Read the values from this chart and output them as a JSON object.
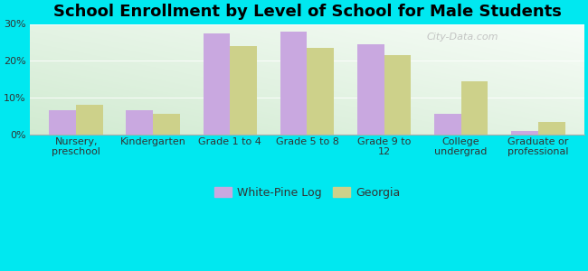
{
  "title": "School Enrollment by Level of School for Male Students",
  "categories": [
    "Nursery,\npreschool",
    "Kindergarten",
    "Grade 1 to 4",
    "Grade 5 to 8",
    "Grade 9 to\n12",
    "College\nundergrad",
    "Graduate or\nprofessional"
  ],
  "white_pine_log": [
    6.5,
    6.5,
    27.5,
    28.0,
    24.5,
    5.5,
    1.0
  ],
  "georgia": [
    8.0,
    5.5,
    24.0,
    23.5,
    21.5,
    14.5,
    3.5
  ],
  "bar_color_wpl": "#c9a8e0",
  "bar_color_georgia": "#cdd18a",
  "background_outer": "#00e8f0",
  "background_inner_top": "#e8f4f0",
  "background_inner_bottom": "#d4ecd0",
  "ylim": [
    0,
    30
  ],
  "yticks": [
    0,
    10,
    20,
    30
  ],
  "ytick_labels": [
    "0%",
    "10%",
    "20%",
    "30%"
  ],
  "legend_label_wpl": "White-Pine Log",
  "legend_label_georgia": "Georgia",
  "bar_width": 0.35,
  "title_fontsize": 13,
  "tick_fontsize": 8,
  "legend_fontsize": 9,
  "watermark": "City-Data.com"
}
